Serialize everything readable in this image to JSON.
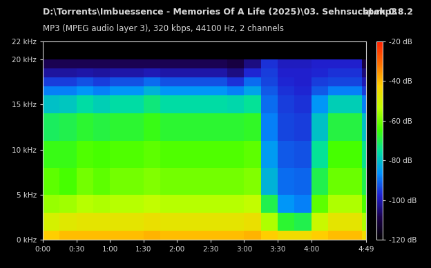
{
  "chart_data": {
    "type": "heatmap",
    "title": "D:\\Torrents\\Imbuessence - Memories Of A Life (2025)\\03. Sehnsucht.mp3",
    "subtitle": "MP3 (MPEG audio layer 3), 320 kbps, 44100 Hz, 2 channels",
    "annotations": [
      "spek 0.8.2"
    ],
    "xlim": [
      0,
      289
    ],
    "xticks": [
      {
        "value": 0,
        "label": "0:00"
      },
      {
        "value": 30,
        "label": "0:30"
      },
      {
        "value": 60,
        "label": "1:00"
      },
      {
        "value": 90,
        "label": "1:30"
      },
      {
        "value": 120,
        "label": "2:00"
      },
      {
        "value": 150,
        "label": "2:30"
      },
      {
        "value": 180,
        "label": "3:00"
      },
      {
        "value": 210,
        "label": "3:30"
      },
      {
        "value": 240,
        "label": "4:00"
      },
      {
        "value": 289,
        "label": "4:49"
      }
    ],
    "ylim": [
      0,
      22
    ],
    "yticks": [
      {
        "value": 0,
        "label": "0 kHz"
      },
      {
        "value": 5,
        "label": "5 kHz"
      },
      {
        "value": 10,
        "label": "10 kHz"
      },
      {
        "value": 15,
        "label": "15 kHz"
      },
      {
        "value": 20,
        "label": "20 kHz"
      },
      {
        "value": 22,
        "label": "22 kHz"
      }
    ],
    "x_edges": [
      0,
      15,
      30,
      45,
      60,
      75,
      90,
      105,
      120,
      135,
      150,
      165,
      180,
      195,
      210,
      225,
      240,
      255,
      270,
      285,
      289
    ],
    "y_edges": [
      0,
      1,
      3,
      5,
      8,
      11,
      14,
      16,
      17,
      18,
      19,
      20,
      22
    ],
    "cells_by_time": [
      [
        -42,
        -50,
        -57,
        -62,
        -66,
        -71,
        -80,
        -88,
        -95,
        -102,
        -108,
        -120
      ],
      [
        -40,
        -48,
        -56,
        -64,
        -66,
        -70,
        -79,
        -88,
        -95,
        -102,
        -108,
        -120
      ],
      [
        -40,
        -47,
        -54,
        -60,
        -63,
        -68,
        -76,
        -86,
        -93,
        -101,
        -108,
        -120
      ],
      [
        -40,
        -47,
        -55,
        -62,
        -64,
        -69,
        -78,
        -88,
        -95,
        -102,
        -108,
        -120
      ],
      [
        -40,
        -47,
        -54,
        -60,
        -63,
        -68,
        -76,
        -86,
        -93,
        -101,
        -108,
        -120
      ],
      [
        -40,
        -47,
        -54,
        -60,
        -63,
        -68,
        -76,
        -86,
        -93,
        -101,
        -108,
        -120
      ],
      [
        -39,
        -46,
        -53,
        -59,
        -62,
        -66,
        -73,
        -82,
        -90,
        -100,
        -108,
        -120
      ],
      [
        -40,
        -47,
        -54,
        -60,
        -63,
        -68,
        -76,
        -86,
        -93,
        -101,
        -108,
        -120
      ],
      [
        -40,
        -47,
        -54,
        -60,
        -63,
        -68,
        -76,
        -86,
        -93,
        -101,
        -108,
        -120
      ],
      [
        -40,
        -47,
        -54,
        -60,
        -63,
        -68,
        -76,
        -86,
        -93,
        -101,
        -108,
        -120
      ],
      [
        -40,
        -47,
        -54,
        -60,
        -63,
        -68,
        -76,
        -86,
        -93,
        -101,
        -108,
        -120
      ],
      [
        -40,
        -47,
        -54,
        -60,
        -63,
        -68,
        -77,
        -88,
        -96,
        -104,
        -110,
        -120
      ],
      [
        -39,
        -46,
        -53,
        -59,
        -62,
        -67,
        -75,
        -84,
        -90,
        -97,
        -104,
        -120
      ],
      [
        -42,
        -55,
        -70,
        -82,
        -85,
        -88,
        -90,
        -92,
        -94,
        -95,
        -96,
        -120
      ],
      [
        -45,
        -68,
        -86,
        -90,
        -92,
        -94,
        -95,
        -96,
        -97,
        -98,
        -99,
        -120
      ],
      [
        -45,
        -70,
        -88,
        -91,
        -93,
        -95,
        -96,
        -97,
        -98,
        -98,
        -99,
        -120
      ],
      [
        -42,
        -52,
        -62,
        -70,
        -75,
        -80,
        -86,
        -92,
        -95,
        -97,
        -98,
        -120
      ],
      [
        -40,
        -47,
        -55,
        -61,
        -64,
        -69,
        -78,
        -88,
        -94,
        -96,
        -98,
        -120
      ],
      [
        -40,
        -47,
        -55,
        -61,
        -64,
        -69,
        -78,
        -88,
        -94,
        -96,
        -98,
        -120
      ],
      [
        -45,
        -55,
        -63,
        -70,
        -74,
        -80,
        -88,
        -95,
        -100,
        -105,
        -110,
        -120
      ]
    ],
    "colorbar_range": [
      -120,
      -20
    ],
    "colorbar_ticks": [
      {
        "value": -20,
        "label": "-20 dB"
      },
      {
        "value": -40,
        "label": "-40 dB"
      },
      {
        "value": -60,
        "label": "-60 dB"
      },
      {
        "value": -80,
        "label": "-80 dB"
      },
      {
        "value": -100,
        "label": "-100 dB"
      },
      {
        "value": -120,
        "label": "-120 dB"
      }
    ]
  }
}
